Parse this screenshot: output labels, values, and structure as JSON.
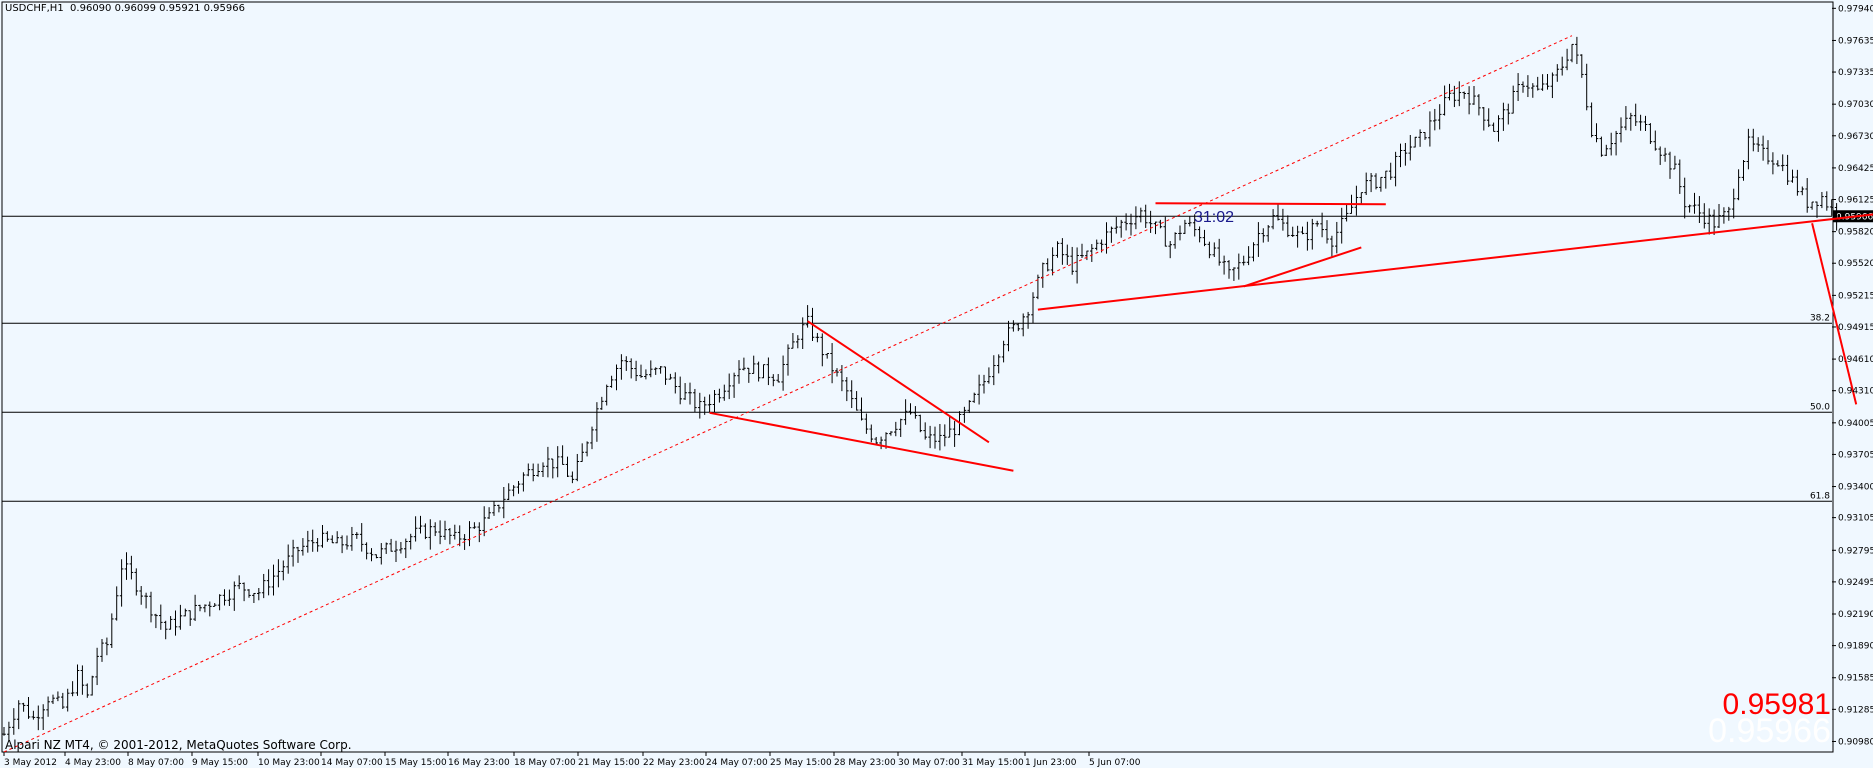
{
  "header": {
    "symbol": "USDCHF,H1",
    "ohlc": "0.96090 0.96099 0.95921 0.95966"
  },
  "footer": {
    "copyright": "Alpari NZ MT4, © 2001-2012, MetaQuotes Software Corp."
  },
  "price_overlay": {
    "bid": "0.95981",
    "last": "0.95966"
  },
  "timer": "31:02",
  "chart_data": {
    "type": "candlestick",
    "symbol": "USDCHF",
    "timeframe": "H1",
    "ylim": [
      0.9088,
      0.98
    ],
    "y_ticks": [
      "0.97940",
      "0.97635",
      "0.97335",
      "0.97030",
      "0.96730",
      "0.96425",
      "0.96125",
      "0.95820",
      "0.95520",
      "0.95215",
      "0.94915",
      "0.94610",
      "0.94310",
      "0.94005",
      "0.93705",
      "0.93400",
      "0.93105",
      "0.92795",
      "0.92495",
      "0.92190",
      "0.91890",
      "0.91585",
      "0.91285",
      "0.90980"
    ],
    "x_ticks": [
      "3 May 2012",
      "4 May 23:00",
      "8 May 07:00",
      "9 May 15:00",
      "10 May 23:00",
      "14 May 07:00",
      "15 May 15:00",
      "16 May 23:00",
      "18 May 07:00",
      "21 May 15:00",
      "22 May 23:00",
      "24 May 07:00",
      "25 May 15:00",
      "28 May 23:00",
      "30 May 07:00",
      "31 May 15:00",
      "1 Jun 23:00",
      "5 Jun 07:00"
    ],
    "current_price": {
      "value": 0.95966,
      "label": "0.95966"
    },
    "fibonacci_levels": [
      {
        "label": "38.2",
        "value": 0.9495
      },
      {
        "label": "50.0",
        "value": 0.94105
      },
      {
        "label": "61.8",
        "value": 0.9326
      }
    ],
    "price_path": [
      [
        0,
        0.9105
      ],
      [
        3,
        0.9135
      ],
      [
        6,
        0.912
      ],
      [
        9,
        0.914
      ],
      [
        12,
        0.913
      ],
      [
        15,
        0.916
      ],
      [
        17,
        0.914
      ],
      [
        19,
        0.918
      ],
      [
        21,
        0.919
      ],
      [
        22,
        0.9215
      ],
      [
        24,
        0.9265
      ],
      [
        26,
        0.9255
      ],
      [
        28,
        0.924
      ],
      [
        30,
        0.9225
      ],
      [
        33,
        0.9205
      ],
      [
        36,
        0.9215
      ],
      [
        40,
        0.9225
      ],
      [
        44,
        0.9235
      ],
      [
        48,
        0.9245
      ],
      [
        52,
        0.924
      ],
      [
        56,
        0.926
      ],
      [
        60,
        0.928
      ],
      [
        64,
        0.929
      ],
      [
        68,
        0.9285
      ],
      [
        72,
        0.929
      ],
      [
        76,
        0.9275
      ],
      [
        80,
        0.9285
      ],
      [
        84,
        0.9295
      ],
      [
        88,
        0.93
      ],
      [
        92,
        0.929
      ],
      [
        96,
        0.93
      ],
      [
        99,
        0.931
      ],
      [
        102,
        0.933
      ],
      [
        106,
        0.935
      ],
      [
        110,
        0.9365
      ],
      [
        114,
        0.936
      ],
      [
        116,
        0.9345
      ],
      [
        118,
        0.937
      ],
      [
        120,
        0.94
      ],
      [
        123,
        0.944
      ],
      [
        126,
        0.946
      ],
      [
        130,
        0.9445
      ],
      [
        134,
        0.945
      ],
      [
        138,
        0.943
      ],
      [
        142,
        0.9415
      ],
      [
        146,
        0.943
      ],
      [
        150,
        0.9455
      ],
      [
        154,
        0.945
      ],
      [
        158,
        0.9445
      ],
      [
        162,
        0.9485
      ],
      [
        164,
        0.9495
      ],
      [
        168,
        0.946
      ],
      [
        172,
        0.943
      ],
      [
        175,
        0.94
      ],
      [
        178,
        0.9385
      ],
      [
        182,
        0.94
      ],
      [
        185,
        0.941
      ],
      [
        188,
        0.9385
      ],
      [
        191,
        0.9385
      ],
      [
        194,
        0.9395
      ],
      [
        197,
        0.9415
      ],
      [
        200,
        0.944
      ],
      [
        204,
        0.948
      ],
      [
        207,
        0.9495
      ],
      [
        209,
        0.951
      ],
      [
        212,
        0.9545
      ],
      [
        215,
        0.9565
      ],
      [
        218,
        0.955
      ],
      [
        221,
        0.956
      ],
      [
        224,
        0.9575
      ],
      [
        228,
        0.959
      ],
      [
        232,
        0.96
      ],
      [
        235,
        0.9585
      ],
      [
        238,
        0.957
      ],
      [
        241,
        0.959
      ],
      [
        244,
        0.958
      ],
      [
        247,
        0.956
      ],
      [
        250,
        0.954
      ],
      [
        253,
        0.9555
      ],
      [
        256,
        0.958
      ],
      [
        259,
        0.9595
      ],
      [
        262,
        0.9585
      ],
      [
        265,
        0.9575
      ],
      [
        268,
        0.959
      ],
      [
        271,
        0.9575
      ],
      [
        274,
        0.9595
      ],
      [
        277,
        0.9625
      ],
      [
        280,
        0.963
      ],
      [
        283,
        0.964
      ],
      [
        286,
        0.966
      ],
      [
        289,
        0.967
      ],
      [
        292,
        0.969
      ],
      [
        295,
        0.971
      ],
      [
        298,
        0.9715
      ],
      [
        301,
        0.97
      ],
      [
        304,
        0.968
      ],
      [
        307,
        0.97
      ],
      [
        310,
        0.9725
      ],
      [
        313,
        0.9715
      ],
      [
        316,
        0.9725
      ],
      [
        318,
        0.974
      ],
      [
        320,
        0.976
      ],
      [
        322,
        0.973
      ],
      [
        324,
        0.968
      ],
      [
        326,
        0.966
      ],
      [
        329,
        0.9675
      ],
      [
        332,
        0.969
      ],
      [
        335,
        0.968
      ],
      [
        338,
        0.966
      ],
      [
        341,
        0.964
      ],
      [
        343,
        0.961
      ],
      [
        346,
        0.96
      ],
      [
        349,
        0.959
      ],
      [
        352,
        0.96
      ],
      [
        354,
        0.964
      ],
      [
        356,
        0.9665
      ],
      [
        359,
        0.9655
      ],
      [
        362,
        0.965
      ],
      [
        365,
        0.963
      ],
      [
        368,
        0.961
      ],
      [
        371,
        0.9615
      ],
      [
        374,
        0.9597
      ]
    ],
    "drawn_lines": [
      {
        "name": "channel-trend-dashed",
        "dashed": true,
        "x1": 0,
        "y1": 0.9088,
        "x2": 320,
        "y2": 0.9768
      },
      {
        "name": "support-line-1",
        "dashed": false,
        "x1": 144,
        "y1": 0.941,
        "x2": 206,
        "y2": 0.9355
      },
      {
        "name": "flag-line",
        "dashed": false,
        "x1": 164,
        "y1": 0.9497,
        "x2": 201,
        "y2": 0.9382
      },
      {
        "name": "neckline-support",
        "dashed": false,
        "x1": 211,
        "y1": 0.9508,
        "x2": 411,
        "y2": 0.9614
      },
      {
        "name": "resistance-top",
        "dashed": false,
        "x1": 235,
        "y1": 0.9609,
        "x2": 282,
        "y2": 0.9608
      },
      {
        "name": "triangle-lower",
        "dashed": false,
        "x1": 253,
        "y1": 0.953,
        "x2": 277,
        "y2": 0.9567
      },
      {
        "name": "projection-line",
        "dashed": false,
        "x1": 369,
        "y1": 0.959,
        "x2": 378,
        "y2": 0.9418
      }
    ]
  }
}
